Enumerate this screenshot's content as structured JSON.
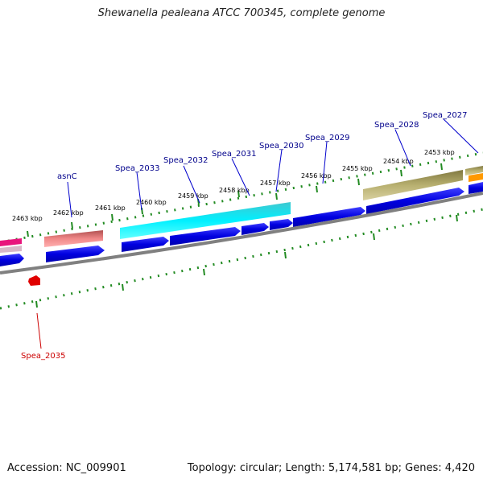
{
  "title": "Shewanella pealeana ATCC 700345, complete genome",
  "footer": {
    "accession": "Accession: NC_009901",
    "summary": "Topology: circular; Length: 5,174,581 bp; Genes: 4,420"
  },
  "scale_labels": [
    "2463 kbp",
    "2462 kbp",
    "2461 kbp",
    "2460 kbp",
    "2459 kbp",
    "2458 kbp",
    "2457 kbp",
    "2456 kbp",
    "2455 kbp",
    "2454 kbp",
    "2453 kbp"
  ],
  "gene_labels": [
    {
      "name": "asnC",
      "color": "#00008b"
    },
    {
      "name": "Spea_2033",
      "color": "#00008b"
    },
    {
      "name": "Spea_2032",
      "color": "#00008b"
    },
    {
      "name": "Spea_2031",
      "color": "#00008b"
    },
    {
      "name": "Spea_2030",
      "color": "#00008b"
    },
    {
      "name": "Spea_2029",
      "color": "#00008b"
    },
    {
      "name": "Spea_2028",
      "color": "#00008b"
    },
    {
      "name": "Spea_2027",
      "color": "#00008b"
    },
    {
      "name": "Spea_2035",
      "color": "#cc0000"
    }
  ],
  "colors": {
    "cds": "#0000e0",
    "feature_cyan": "#00e5ee",
    "feature_salmon": "#e88080",
    "feature_olive": "#b0a860",
    "feature_orange": "#ff9900",
    "feature_pink": "#e8147c",
    "feature_red": "#e00000",
    "tick": "#228b22",
    "backbone": "#808080"
  }
}
